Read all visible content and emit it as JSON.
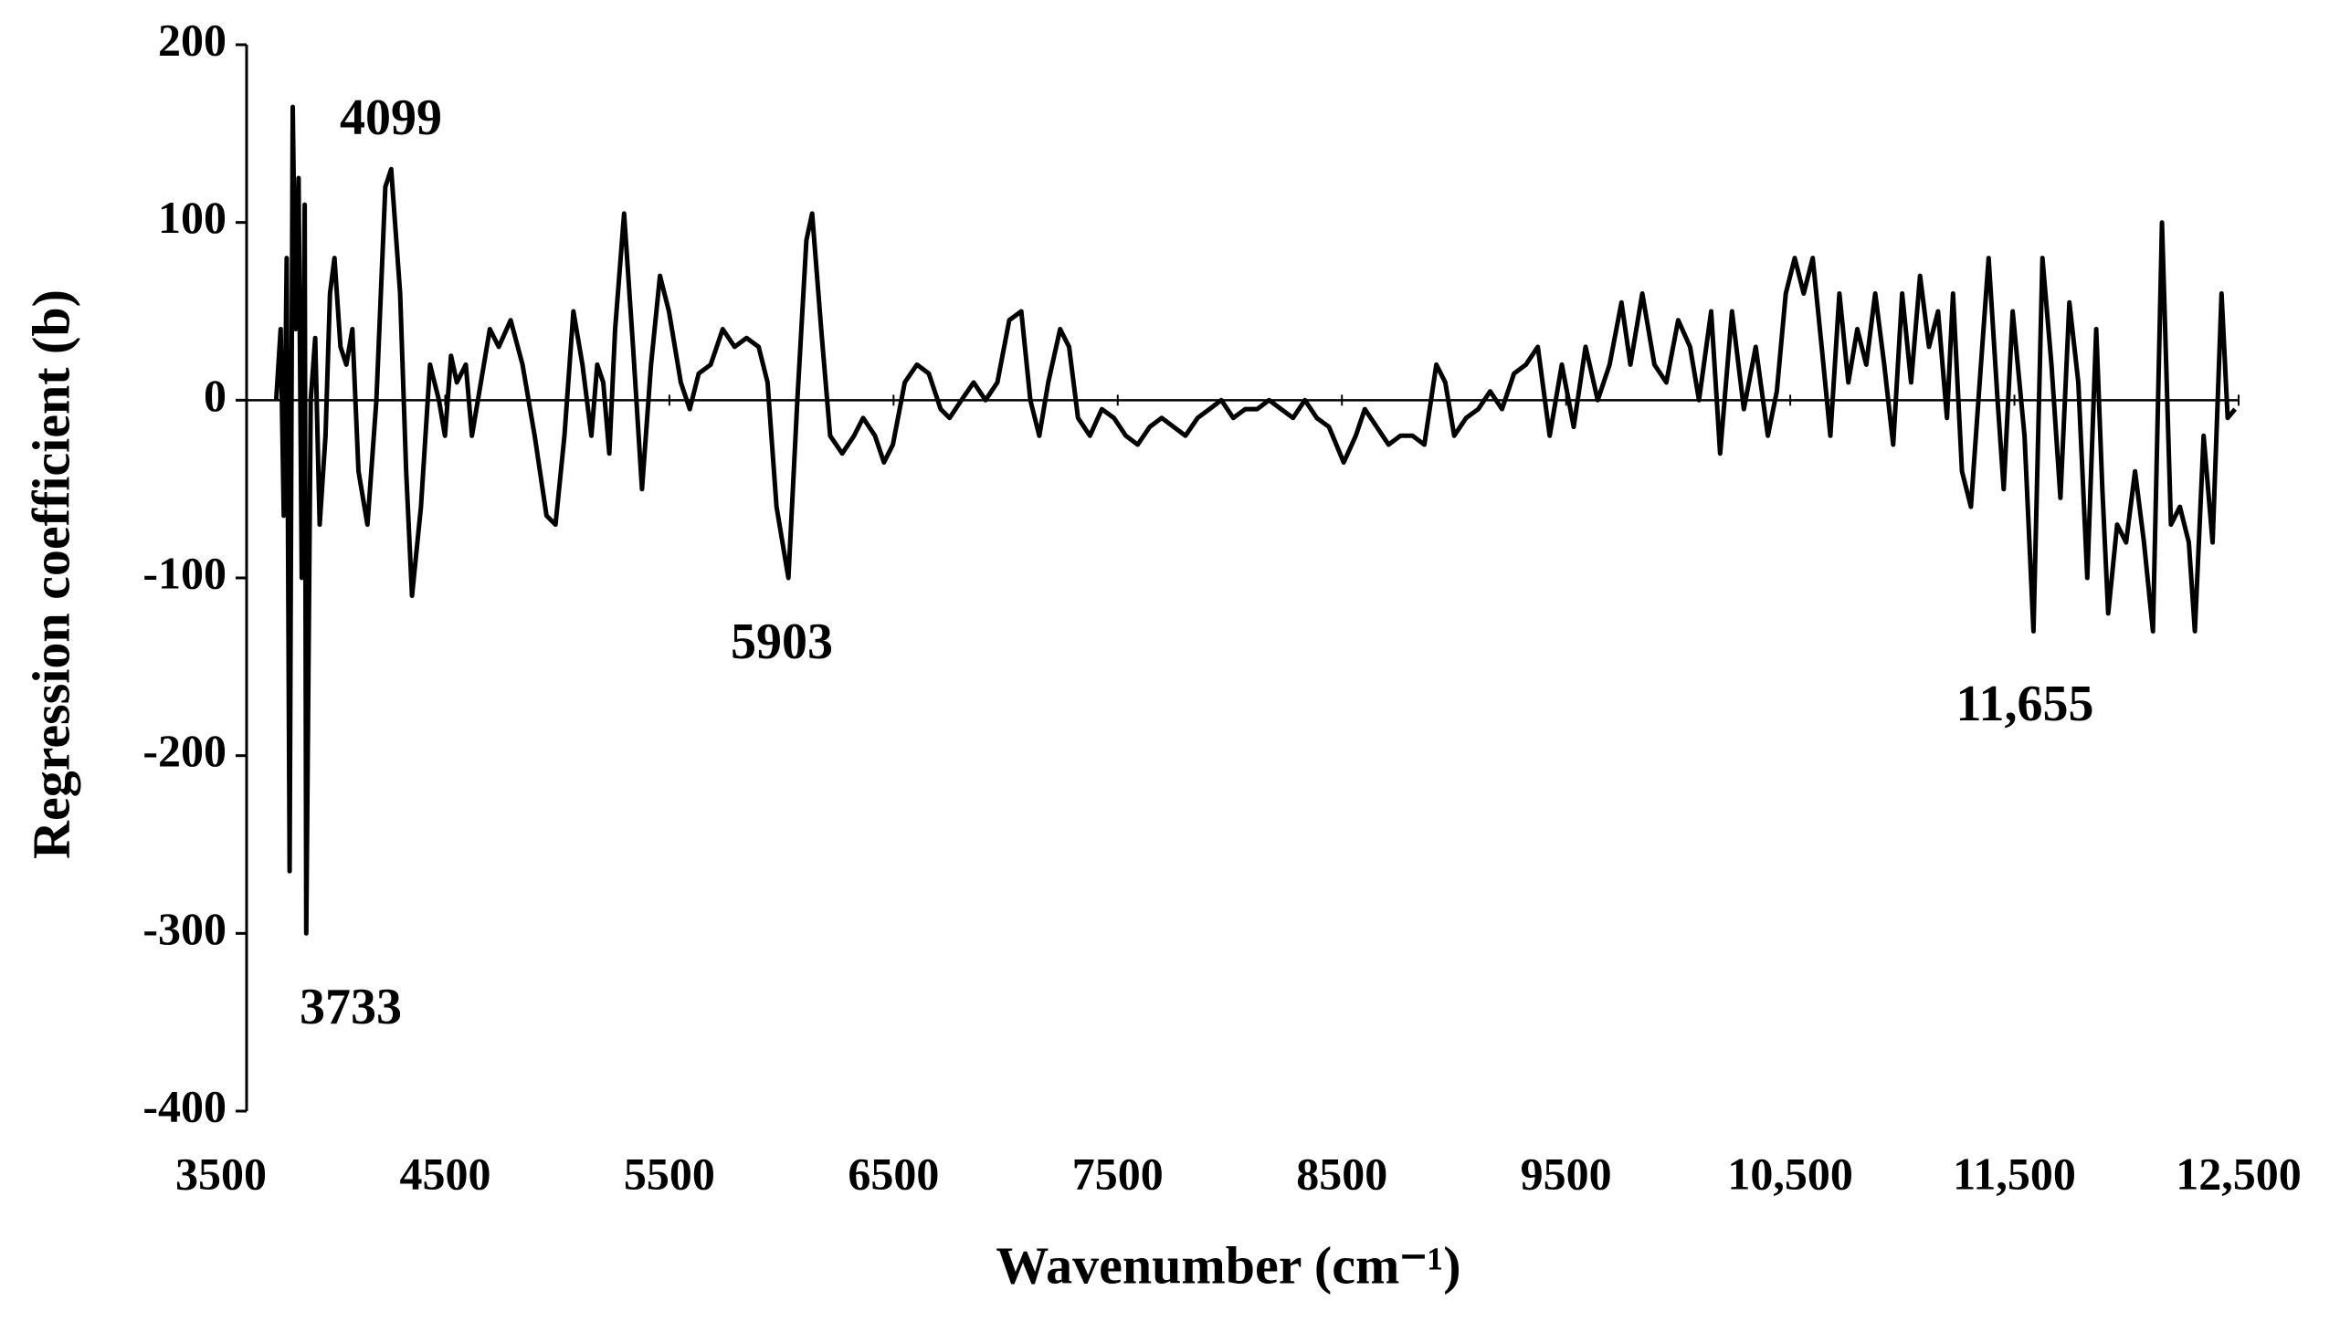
{
  "chart_data": {
    "type": "line",
    "x_label": "Wavenumber (cm⁻¹)",
    "y_label": "Regression coefficient (b)",
    "annotations": [
      "4099",
      "3733",
      "5903",
      "11,655"
    ],
    "color": "#000000",
    "xlim": [
      3500,
      12500
    ],
    "ylim": [
      -400,
      200
    ],
    "xticks": [
      3500,
      4500,
      5500,
      6500,
      7500,
      8500,
      9500,
      {
        "value": 10500,
        "label": "10,500"
      },
      {
        "value": 11500,
        "label": "11,500"
      },
      {
        "value": 12500,
        "label": "12,500"
      }
    ],
    "yticks": [
      -400,
      -300,
      -200,
      -100,
      0,
      100,
      200
    ],
    "x": [
      3746,
      3766,
      3780,
      3793,
      3806,
      3820,
      3833,
      3846,
      3860,
      3873,
      3880,
      3900,
      3920,
      3940,
      3966,
      3986,
      4006,
      4033,
      4059,
      4086,
      4113,
      4153,
      4193,
      4233,
      4259,
      4299,
      4326,
      4352,
      4392,
      4432,
      4472,
      4499,
      4526,
      4552,
      4592,
      4619,
      4659,
      4699,
      4739,
      4792,
      4845,
      4899,
      4952,
      4992,
      5032,
      5072,
      5112,
      5152,
      5178,
      5205,
      5232,
      5258,
      5298,
      5338,
      5378,
      5418,
      5458,
      5498,
      5551,
      5591,
      5631,
      5684,
      5738,
      5791,
      5844,
      5898,
      5938,
      5978,
      6031,
      6071,
      6111,
      6137,
      6177,
      6217,
      6271,
      6324,
      6364,
      6417,
      6457,
      6497,
      6550,
      6604,
      6657,
      6710,
      6750,
      6803,
      6857,
      6910,
      6963,
      7016,
      7070,
      7110,
      7150,
      7190,
      7243,
      7283,
      7323,
      7376,
      7429,
      7483,
      7536,
      7589,
      7643,
      7696,
      7749,
      7802,
      7856,
      7909,
      7962,
      8015,
      8069,
      8122,
      8175,
      8229,
      8282,
      8335,
      8388,
      8442,
      8508,
      8562,
      8602,
      8655,
      8708,
      8761,
      8815,
      8868,
      8921,
      8961,
      9001,
      9054,
      9108,
      9161,
      9214,
      9268,
      9321,
      9374,
      9427,
      9481,
      9534,
      9587,
      9641,
      9694,
      9747,
      9787,
      9840,
      9894,
      9947,
      10000,
      10053,
      10093,
      10147,
      10187,
      10240,
      10293,
      10346,
      10400,
      10440,
      10480,
      10520,
      10560,
      10600,
      10640,
      10679,
      10719,
      10759,
      10799,
      10839,
      10879,
      10919,
      10959,
      10999,
      11039,
      11079,
      11119,
      11159,
      11199,
      11226,
      11266,
      11306,
      11345,
      11385,
      11425,
      11452,
      11492,
      11545,
      11585,
      11625,
      11665,
      11705,
      11745,
      11785,
      11825,
      11865,
      11892,
      11918,
      11958,
      11998,
      12038,
      12078,
      12118,
      12158,
      12198,
      12238,
      12278,
      12305,
      12344,
      12384,
      12424,
      12451,
      12484
    ],
    "values": [
      0,
      40,
      -65,
      80,
      -265,
      165,
      40,
      125,
      -100,
      110,
      -300,
      0,
      35,
      -70,
      -20,
      60,
      80,
      30,
      20,
      40,
      -40,
      -70,
      0,
      120,
      130,
      60,
      -40,
      -110,
      -60,
      20,
      0,
      -20,
      25,
      10,
      20,
      -20,
      10,
      40,
      30,
      45,
      20,
      -20,
      -65,
      -70,
      -20,
      50,
      20,
      -20,
      20,
      10,
      -30,
      40,
      105,
      30,
      -50,
      20,
      70,
      50,
      10,
      -5,
      15,
      20,
      40,
      30,
      35,
      30,
      10,
      -60,
      -100,
      0,
      90,
      105,
      40,
      -20,
      -30,
      -20,
      -10,
      -20,
      -35,
      -25,
      10,
      20,
      15,
      -5,
      -10,
      0,
      10,
      0,
      10,
      45,
      50,
      0,
      -20,
      10,
      40,
      30,
      -10,
      -20,
      -5,
      -10,
      -20,
      -25,
      -15,
      -10,
      -15,
      -20,
      -10,
      -5,
      0,
      -10,
      -5,
      -5,
      0,
      -5,
      -10,
      0,
      -10,
      -15,
      -35,
      -20,
      -5,
      -15,
      -25,
      -20,
      -20,
      -25,
      20,
      10,
      -20,
      -10,
      -5,
      5,
      -5,
      15,
      20,
      30,
      -20,
      20,
      -15,
      30,
      0,
      20,
      55,
      20,
      60,
      20,
      10,
      45,
      30,
      0,
      50,
      -30,
      50,
      -5,
      30,
      -20,
      5,
      60,
      80,
      60,
      80,
      30,
      -20,
      60,
      10,
      40,
      20,
      60,
      20,
      -25,
      60,
      10,
      70,
      30,
      50,
      -10,
      60,
      -40,
      -60,
      10,
      80,
      0,
      -50,
      50,
      -20,
      -130,
      80,
      20,
      -55,
      55,
      10,
      -100,
      40,
      -50,
      -120,
      -70,
      -80,
      -40,
      -80,
      -130,
      100,
      -70,
      -60,
      -80,
      -130,
      -20,
      -80,
      60,
      -10,
      -5
    ]
  }
}
